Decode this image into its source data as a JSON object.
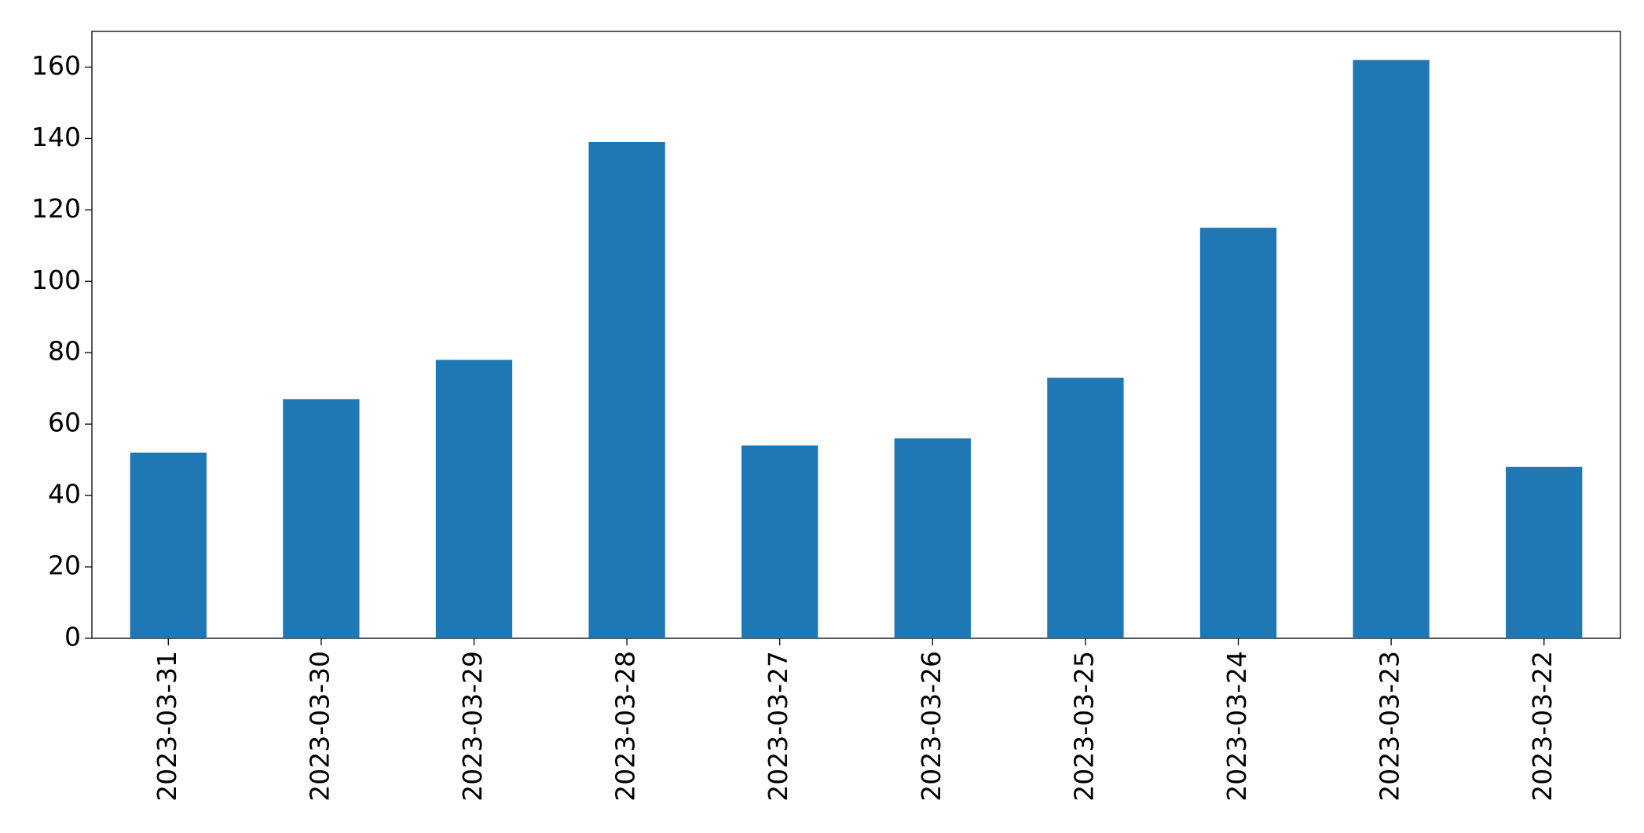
{
  "chart_data": {
    "type": "bar",
    "categories": [
      "2023-03-31",
      "2023-03-30",
      "2023-03-29",
      "2023-03-28",
      "2023-03-27",
      "2023-03-26",
      "2023-03-25",
      "2023-03-24",
      "2023-03-23",
      "2023-03-22"
    ],
    "values": [
      52,
      67,
      78,
      139,
      54,
      56,
      73,
      115,
      162,
      48
    ],
    "color": "#1f77b4",
    "ylim": [
      0,
      170
    ],
    "yticks": [
      0,
      20,
      40,
      60,
      80,
      100,
      120,
      140,
      160
    ],
    "grid": false
  }
}
